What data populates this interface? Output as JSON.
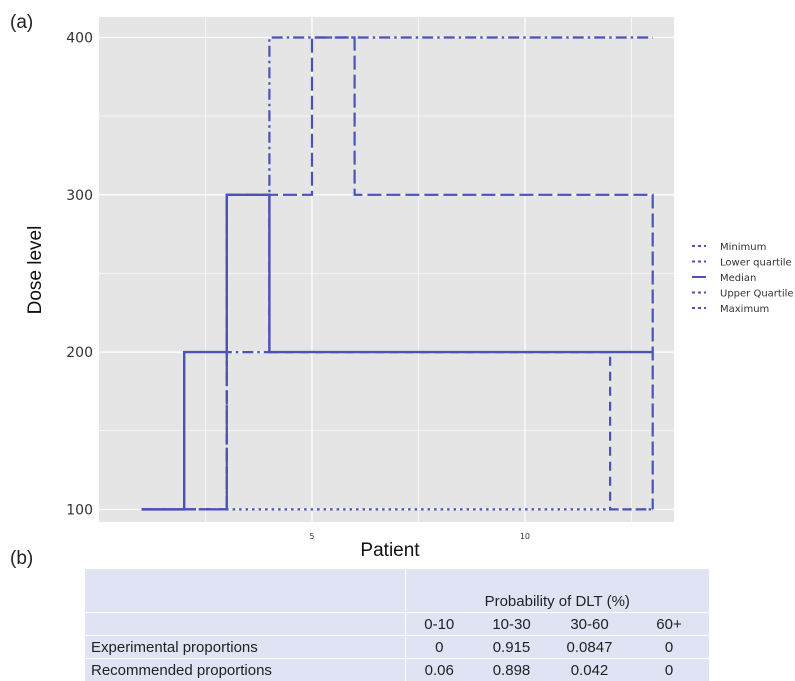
{
  "panel_labels": {
    "a": "(a)",
    "b": "(b)"
  },
  "colors": {
    "line": "#4b52b8",
    "panel_bg": "#e5e5e5",
    "grid": "#ffffff",
    "table_bg": "#dfe3f3"
  },
  "chart_data": {
    "type": "line",
    "xlabel": "Patient",
    "ylabel": "Dose level",
    "xlim": [
      0,
      13.5
    ],
    "ylim": [
      92,
      413
    ],
    "x_ticks": [
      5,
      10
    ],
    "y_ticks": [
      100,
      200,
      300,
      400
    ],
    "grid": true,
    "legend_position": "right",
    "series": [
      {
        "name": "Minimum",
        "dash": "dotted",
        "points": [
          [
            1,
            100
          ],
          [
            13,
            100
          ]
        ]
      },
      {
        "name": "Lower quartile",
        "dash": "dashed",
        "points": [
          [
            1,
            100
          ],
          [
            3,
            100
          ],
          [
            3,
            300
          ],
          [
            4,
            300
          ],
          [
            4,
            200
          ],
          [
            12,
            200
          ],
          [
            12,
            100
          ],
          [
            13,
            100
          ]
        ]
      },
      {
        "name": "Median",
        "dash": "solid",
        "points": [
          [
            1,
            100
          ],
          [
            2,
            100
          ],
          [
            2,
            200
          ],
          [
            3,
            200
          ],
          [
            3,
            300
          ],
          [
            4,
            300
          ],
          [
            4,
            200
          ],
          [
            13,
            200
          ]
        ]
      },
      {
        "name": "Upper Quartile",
        "dash": "longdash",
        "points": [
          [
            1,
            100
          ],
          [
            3,
            100
          ],
          [
            3,
            300
          ],
          [
            5,
            300
          ],
          [
            5,
            400
          ],
          [
            6,
            400
          ],
          [
            6,
            300
          ],
          [
            13,
            300
          ],
          [
            13,
            100
          ]
        ]
      },
      {
        "name": "Maximum",
        "dash": "dashdot",
        "points": [
          [
            1,
            100
          ],
          [
            3,
            100
          ],
          [
            3,
            200
          ],
          [
            4,
            200
          ],
          [
            4,
            400
          ],
          [
            13,
            400
          ]
        ]
      }
    ]
  },
  "table": {
    "header_title": "Probability of DLT (%)",
    "columns": [
      "0-10",
      "10-30",
      "30-60",
      "60+"
    ],
    "rows": [
      {
        "label": "Experimental proportions",
        "values": [
          "0",
          "0.915",
          "0.0847",
          "0"
        ]
      },
      {
        "label": "Recommended proportions",
        "values": [
          "0.06",
          "0.898",
          "0.042",
          "0"
        ]
      }
    ]
  }
}
